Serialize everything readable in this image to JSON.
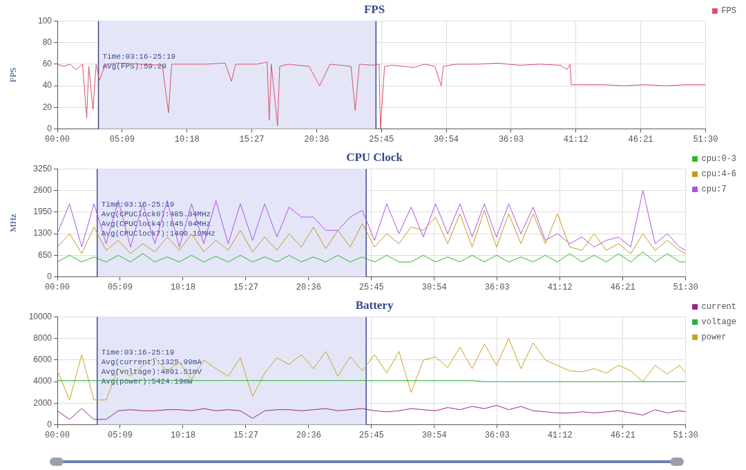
{
  "chart_data": [
    {
      "type": "line",
      "title": "FPS",
      "ylabel": "FPS",
      "legend": "top right",
      "grid": true,
      "marker": "none",
      "line_style": "solid",
      "xlim": [
        0,
        3090
      ],
      "xticks": [
        {
          "value": 0,
          "label": "00:00"
        },
        {
          "value": 309,
          "label": "05:09"
        },
        {
          "value": 618,
          "label": "10:18"
        },
        {
          "value": 927,
          "label": "15:27"
        },
        {
          "value": 1236,
          "label": "20:36"
        },
        {
          "value": 1545,
          "label": "25:45"
        },
        {
          "value": 1854,
          "label": "30:54"
        },
        {
          "value": 2163,
          "label": "36:03"
        },
        {
          "value": 2472,
          "label": "41:12"
        },
        {
          "value": 2781,
          "label": "46:21"
        },
        {
          "value": 3090,
          "label": "51:30"
        }
      ],
      "ylim": [
        0,
        100
      ],
      "yticks": [
        0,
        20,
        40,
        60,
        80,
        100
      ],
      "bands": [
        {
          "axis": "x",
          "from": 196,
          "to": 1519,
          "color": "#e4e6f8"
        }
      ],
      "annotations": [
        "Time:03:16-25:19",
        "Avg(FPS):59.29"
      ],
      "ref_lines": [
        {
          "axis": "x",
          "value": 196,
          "color": "#3b4a8a"
        },
        {
          "axis": "x",
          "value": 1519,
          "color": "#3b4a8a"
        }
      ],
      "series": [
        {
          "name": "FPS",
          "color": "#d9506a",
          "x": [
            0,
            30,
            60,
            90,
            120,
            140,
            150,
            170,
            185,
            200,
            230,
            300,
            400,
            500,
            530,
            545,
            700,
            800,
            830,
            850,
            950,
            1000,
            1010,
            1020,
            1050,
            1060,
            1100,
            1200,
            1250,
            1300,
            1400,
            1420,
            1440,
            1500,
            1534,
            1540,
            1560,
            1600,
            1700,
            1750,
            1800,
            1830,
            1840,
            1900,
            2000,
            2100,
            2200,
            2300,
            2400,
            2430,
            2444,
            2450,
            2600,
            2700,
            2800,
            2900,
            3000,
            3090
          ],
          "values": [
            60,
            58,
            60,
            55,
            60,
            10,
            58,
            18,
            60,
            45,
            60,
            61,
            60,
            59,
            15,
            60,
            60,
            61,
            44,
            60,
            60,
            62,
            8,
            60,
            3,
            58,
            60,
            58,
            40,
            60,
            58,
            17,
            60,
            59,
            60,
            0,
            58,
            59,
            57,
            60,
            58,
            40,
            58,
            60,
            60,
            61,
            59,
            60,
            59,
            55,
            60,
            41,
            41,
            40,
            41,
            40,
            41,
            41
          ]
        }
      ]
    },
    {
      "type": "line",
      "title": "CPU Clock",
      "ylabel": "MHz",
      "legend": "top right",
      "grid": true,
      "marker": "none",
      "line_style": "solid",
      "x": [
        0,
        60,
        120,
        180,
        240,
        300,
        360,
        420,
        480,
        540,
        600,
        660,
        720,
        780,
        840,
        900,
        960,
        1020,
        1080,
        1140,
        1200,
        1260,
        1320,
        1380,
        1440,
        1500,
        1560,
        1620,
        1680,
        1740,
        1800,
        1860,
        1920,
        1980,
        2040,
        2100,
        2160,
        2220,
        2280,
        2340,
        2400,
        2460,
        2520,
        2580,
        2640,
        2700,
        2760,
        2820,
        2880,
        2940,
        3000,
        3060,
        3090
      ],
      "xlim": [
        0,
        3090
      ],
      "xticks": [
        {
          "value": 0,
          "label": "00:00"
        },
        {
          "value": 309,
          "label": "05:09"
        },
        {
          "value": 618,
          "label": "10:18"
        },
        {
          "value": 927,
          "label": "15:27"
        },
        {
          "value": 1236,
          "label": "20:36"
        },
        {
          "value": 1545,
          "label": "25:45"
        },
        {
          "value": 1854,
          "label": "30:54"
        },
        {
          "value": 2163,
          "label": "36:03"
        },
        {
          "value": 2472,
          "label": "41:12"
        },
        {
          "value": 2781,
          "label": "46:21"
        },
        {
          "value": 3090,
          "label": "51:30"
        }
      ],
      "ylim": [
        0,
        3250
      ],
      "yticks": [
        0,
        650,
        1300,
        1950,
        2600,
        3250
      ],
      "bands": [
        {
          "axis": "x",
          "from": 196,
          "to": 1519,
          "color": "#e4e6f8"
        }
      ],
      "annotations": [
        "Time:03:16-25:19",
        "Avg(CPUClock0):485.34MHz",
        "Avg(CPUClock4):845.04MHz",
        "Avg(CPUClock7):1490.19MHz"
      ],
      "ref_lines": [
        {
          "axis": "x",
          "value": 196,
          "color": "#3b4a8a"
        },
        {
          "axis": "x",
          "value": 1519,
          "color": "#3b4a8a"
        }
      ],
      "series": [
        {
          "name": "cpu:0-3",
          "color": "#22bb22",
          "values": [
            450,
            650,
            450,
            600,
            450,
            650,
            450,
            700,
            450,
            600,
            450,
            650,
            450,
            620,
            450,
            650,
            450,
            600,
            450,
            650,
            450,
            600,
            450,
            650,
            450,
            600,
            450,
            650,
            450,
            450,
            650,
            450,
            600,
            450,
            650,
            450,
            650,
            450,
            600,
            450,
            650,
            450,
            700,
            450,
            650,
            450,
            700,
            450,
            750,
            450,
            700,
            450,
            450
          ]
        },
        {
          "name": "cpu:4-6",
          "color": "#c8951a",
          "values": [
            900,
            1300,
            700,
            1500,
            800,
            1100,
            700,
            1000,
            750,
            1200,
            800,
            1300,
            750,
            1100,
            800,
            1400,
            750,
            1200,
            800,
            1300,
            900,
            1500,
            850,
            1400,
            900,
            1600,
            900,
            1300,
            1000,
            1500,
            1400,
            1800,
            1000,
            1900,
            900,
            2000,
            900,
            1900,
            1000,
            1900,
            1000,
            1900,
            900,
            800,
            1300,
            800,
            1000,
            700,
            1300,
            800,
            1100,
            800,
            700
          ]
        },
        {
          "name": "cpu:7",
          "color": "#b050e8",
          "values": [
            1300,
            2200,
            900,
            2200,
            1000,
            2300,
            900,
            2200,
            1000,
            2300,
            900,
            2200,
            1000,
            2300,
            1000,
            2200,
            1100,
            2200,
            1200,
            2100,
            1800,
            1800,
            1400,
            1400,
            1800,
            2000,
            1100,
            2200,
            1300,
            2100,
            1200,
            2200,
            1300,
            2200,
            1200,
            2200,
            1200,
            2200,
            1300,
            2100,
            1100,
            1300,
            1000,
            1200,
            900,
            1100,
            1200,
            900,
            2600,
            1000,
            1300,
            900,
            800
          ]
        }
      ]
    },
    {
      "type": "line",
      "title": "Battery",
      "legend": "top right",
      "grid": true,
      "marker": "none",
      "line_style": "solid",
      "x": [
        0,
        60,
        120,
        180,
        240,
        300,
        360,
        420,
        480,
        540,
        600,
        660,
        720,
        780,
        840,
        900,
        960,
        1020,
        1080,
        1140,
        1200,
        1260,
        1320,
        1380,
        1440,
        1500,
        1560,
        1620,
        1680,
        1740,
        1800,
        1860,
        1920,
        1980,
        2040,
        2100,
        2160,
        2220,
        2280,
        2340,
        2400,
        2460,
        2520,
        2580,
        2640,
        2700,
        2760,
        2820,
        2880,
        2940,
        3000,
        3060,
        3090
      ],
      "xlim": [
        0,
        3090
      ],
      "xticks": [
        {
          "value": 0,
          "label": "00:00"
        },
        {
          "value": 309,
          "label": "05:09"
        },
        {
          "value": 618,
          "label": "10:18"
        },
        {
          "value": 927,
          "label": "15:27"
        },
        {
          "value": 1236,
          "label": "20:36"
        },
        {
          "value": 1545,
          "label": "25:45"
        },
        {
          "value": 1854,
          "label": "30:54"
        },
        {
          "value": 2163,
          "label": "36:03"
        },
        {
          "value": 2472,
          "label": "41:12"
        },
        {
          "value": 2781,
          "label": "46:21"
        },
        {
          "value": 3090,
          "label": "51:30"
        }
      ],
      "ylim": [
        0,
        10000
      ],
      "yticks": [
        0,
        2000,
        4000,
        6000,
        8000,
        10000
      ],
      "bands": [
        {
          "axis": "x",
          "from": 196,
          "to": 1519,
          "color": "#e4e6f8"
        }
      ],
      "annotations": [
        "Time:03:16-25:19",
        "Avg(current):1325.99mA",
        "Avg(voltage):4091.51mV",
        "Avg(power):5424.19mW"
      ],
      "ref_lines": [
        {
          "axis": "x",
          "value": 196,
          "color": "#3b4a8a"
        },
        {
          "axis": "x",
          "value": 1519,
          "color": "#3b4a8a"
        }
      ],
      "series": [
        {
          "name": "current",
          "color": "#a0208f",
          "values": [
            1300,
            500,
            1500,
            500,
            500,
            1300,
            1400,
            1300,
            1300,
            1400,
            1400,
            1300,
            1500,
            1300,
            1400,
            1300,
            600,
            1300,
            1400,
            1400,
            1300,
            1400,
            1500,
            1300,
            1400,
            1500,
            1300,
            1200,
            1300,
            1500,
            1400,
            1300,
            1600,
            1400,
            1700,
            1500,
            1800,
            1400,
            1700,
            1300,
            1200,
            1100,
            1100,
            1200,
            1100,
            1200,
            1300,
            1100,
            900,
            1400,
            1100,
            1300,
            1200
          ]
        },
        {
          "name": "voltage",
          "color": "#30b040",
          "values": [
            4100,
            4100,
            4100,
            4100,
            4100,
            4100,
            4100,
            4100,
            4100,
            4100,
            4100,
            4100,
            4100,
            4100,
            4100,
            4100,
            4100,
            4100,
            4100,
            4100,
            4100,
            4100,
            4100,
            4100,
            4100,
            4100,
            4100,
            4100,
            4100,
            4100,
            4100,
            4100,
            4100,
            4100,
            4100,
            4000,
            4000,
            4000,
            4000,
            4000,
            4000,
            4000,
            4000,
            4000,
            4000,
            4000,
            4000,
            4000,
            4000,
            4000,
            4000,
            4000,
            4000
          ]
        },
        {
          "name": "power",
          "color": "#c9a020",
          "values": [
            5000,
            2300,
            6500,
            2300,
            2300,
            5200,
            4500,
            5500,
            6200,
            5000,
            5800,
            4200,
            6000,
            5200,
            4500,
            6200,
            2600,
            4800,
            6200,
            5600,
            6500,
            5200,
            6800,
            4500,
            6300,
            5000,
            6500,
            4800,
            6800,
            3000,
            6000,
            6300,
            5300,
            7200,
            5200,
            7500,
            5500,
            8000,
            5200,
            7600,
            6000,
            5500,
            5000,
            4900,
            5200,
            4800,
            5500,
            5000,
            4000,
            5500,
            4700,
            5500,
            4800
          ]
        }
      ]
    }
  ]
}
